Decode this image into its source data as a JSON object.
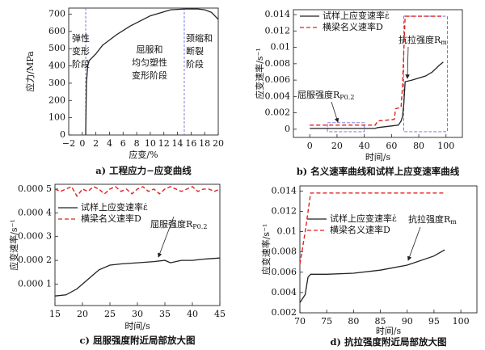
{
  "chart_data": [
    {
      "type": "line",
      "caption": "a) 工程应力−应变曲线",
      "xlabel": "应变/%",
      "ylabel": "应力/MPa",
      "xlim": [
        -2,
        20
      ],
      "ylim": [
        0,
        735
      ],
      "xticks": [
        {
          "value": -2,
          "label": "−2"
        },
        0,
        2,
        4,
        6,
        8,
        10,
        12,
        14,
        16,
        18,
        20
      ],
      "yticks": [
        0,
        100,
        200,
        300,
        400,
        500,
        600,
        700
      ],
      "series": [
        {
          "color": "#222222",
          "dash": false,
          "x": [
            0.5,
            0.6,
            0.8,
            1,
            2,
            3,
            5,
            7,
            10,
            13,
            15,
            17,
            18,
            19,
            20
          ],
          "values": [
            0,
            300,
            400,
            430,
            470,
            520,
            580,
            630,
            690,
            725,
            730,
            730,
            725,
            710,
            670
          ]
        }
      ],
      "vlines": [
        {
          "x": 0.5,
          "color": "#6b6be0"
        },
        {
          "x": 15,
          "color": "#6b6be0"
        }
      ],
      "annotations": [
        {
          "lines": [
            "弹性",
            "变形",
            "阶段"
          ]
        },
        {
          "lines": [
            "屈服和",
            "均匀塑性",
            "变形阶段"
          ]
        },
        {
          "lines": [
            "颈缩和",
            "断裂",
            "阶段"
          ]
        }
      ]
    },
    {
      "type": "line",
      "caption": "b) 名义速率曲线和试样上应变速率曲线",
      "xlabel": "时间/s",
      "ylabel": "应变速率/s⁻¹",
      "xlim": [
        -12,
        112
      ],
      "ylim": [
        -0.001,
        0.0146
      ],
      "xticks": [
        0,
        20,
        40,
        60,
        80,
        100
      ],
      "yticks": [
        0,
        0.002,
        0.004,
        0.006,
        0.008,
        0.01,
        0.012,
        0.014
      ],
      "series": [
        {
          "name": "试样上应变速率ε̇",
          "color": "#222222",
          "dash": false,
          "x": [
            0,
            20,
            48,
            50,
            55,
            60,
            65,
            67,
            68,
            69,
            70,
            75,
            85,
            90,
            95,
            98
          ],
          "values": [
            0.0001,
            0.0001,
            0.0001,
            0.0002,
            0.0003,
            0.0004,
            0.0005,
            0.001,
            0.0015,
            0.003,
            0.0058,
            0.006,
            0.0065,
            0.007,
            0.0078,
            0.0082
          ]
        },
        {
          "name": "横梁名义速率D",
          "color": "#e02020",
          "dash": true,
          "x": [
            0,
            48,
            50,
            62,
            63,
            67,
            68,
            70,
            97
          ],
          "values": [
            0.0005,
            0.0005,
            0.001,
            0.0012,
            0.0025,
            0.0027,
            0.005,
            0.0138,
            0.0138
          ]
        }
      ],
      "zoom_boxes": [
        {
          "xlim": [
            13,
            40
          ],
          "ylim": [
            -0.0003,
            0.0008
          ],
          "color": "#6b6be0"
        },
        {
          "xlim": [
            69,
            101
          ],
          "ylim": [
            -0.0003,
            0.0138
          ],
          "color": "#6b6be0"
        }
      ],
      "annotations": [
        {
          "text": "抗拉强度R",
          "sub": "m"
        },
        {
          "text": "屈服强度R",
          "sub": "P0.2"
        }
      ]
    },
    {
      "type": "line",
      "caption": "c) 屈服强度附近局部放大图",
      "xlabel": "时间/s",
      "ylabel": "应变速率/s⁻¹",
      "xlim": [
        15,
        45
      ],
      "ylim": [
        1e-05,
        0.00052
      ],
      "xticks": [
        15,
        20,
        25,
        30,
        35,
        40,
        45
      ],
      "yticks": [
        {
          "value": 0.0001,
          "label": "0.000 1"
        },
        {
          "value": 0.0002,
          "label": "0.000 2"
        },
        {
          "value": 0.0003,
          "label": "0.000 3"
        },
        {
          "value": 0.0004,
          "label": "0.000 4"
        },
        {
          "value": 0.0005,
          "label": "0.000 5"
        }
      ],
      "series": [
        {
          "name": "试样上应变速率ε̇",
          "color": "#222222",
          "dash": false,
          "x": [
            15,
            17,
            19,
            20,
            21,
            22,
            23,
            25,
            27,
            30,
            33,
            35,
            36,
            38,
            40,
            42,
            45
          ],
          "values": [
            5e-05,
            5.5e-05,
            8e-05,
            0.0001,
            0.00012,
            0.00014,
            0.00016,
            0.00018,
            0.000185,
            0.00019,
            0.000195,
            0.0002,
            0.00019,
            0.0002,
            0.0002,
            0.000205,
            0.00021
          ]
        },
        {
          "name": "横梁名义速率D",
          "color": "#e02020",
          "dash": true,
          "x": [
            15,
            16,
            17,
            18,
            19,
            20,
            21,
            22,
            23,
            24,
            25,
            26,
            27,
            28,
            29,
            30,
            31,
            32,
            33,
            34,
            35,
            36,
            37,
            38,
            39,
            40,
            41,
            42,
            43,
            44,
            45
          ],
          "values": [
            0.0005,
            0.00049,
            0.0005,
            0.00051,
            0.00047,
            0.0005,
            0.00049,
            0.00051,
            0.0005,
            0.00048,
            0.0005,
            0.00051,
            0.00049,
            0.0005,
            0.00048,
            0.0005,
            0.00051,
            0.00049,
            0.0005,
            0.00048,
            0.0005,
            0.00051,
            0.0005,
            0.00049,
            0.0005,
            0.00051,
            0.00049,
            0.0005,
            0.0005,
            0.00049,
            0.0005
          ]
        }
      ],
      "annotations": [
        {
          "text": "屈服强度R",
          "sub": "P0.2"
        }
      ]
    },
    {
      "type": "line",
      "caption": "d) 抗拉强度附近局部放大图",
      "xlabel": "时间/s",
      "ylabel": "应变速率/s⁻¹",
      "xlim": [
        70,
        103
      ],
      "ylim": [
        0.002,
        0.0145
      ],
      "xticks": [
        70,
        75,
        80,
        85,
        90,
        95,
        100
      ],
      "yticks": [
        0.002,
        0.004,
        0.006,
        0.008,
        0.01,
        0.012,
        0.014
      ],
      "series": [
        {
          "name": "试样上应变速率ε̇",
          "color": "#222222",
          "dash": false,
          "x": [
            70,
            71,
            71.5,
            72,
            75,
            80,
            85,
            90,
            95,
            97
          ],
          "values": [
            0.003,
            0.0038,
            0.0055,
            0.0058,
            0.0058,
            0.0059,
            0.0062,
            0.0067,
            0.0076,
            0.0082
          ]
        },
        {
          "name": "横梁名义速率D",
          "color": "#e02020",
          "dash": true,
          "x": [
            70,
            71,
            72,
            97
          ],
          "values": [
            0.0068,
            0.01,
            0.0138,
            0.0138
          ]
        }
      ],
      "annotations": [
        {
          "text": "抗拉强度R",
          "sub": "m"
        }
      ]
    }
  ]
}
